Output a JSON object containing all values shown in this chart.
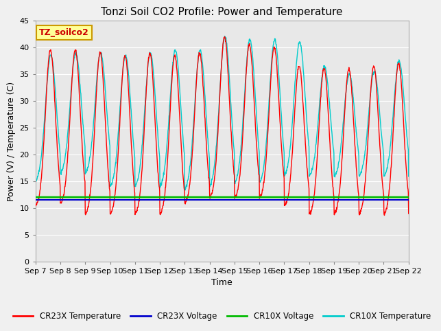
{
  "title": "Tonzi Soil CO2 Profile: Power and Temperature",
  "xlabel": "Time",
  "ylabel": "Power (V) / Temperature (C)",
  "ylim": [
    0,
    45
  ],
  "yticks": [
    0,
    5,
    10,
    15,
    20,
    25,
    30,
    35,
    40,
    45
  ],
  "xtick_labels": [
    "Sep 7",
    "Sep 8",
    "Sep 9",
    "Sep 10",
    "Sep 11",
    "Sep 12",
    "Sep 13",
    "Sep 14",
    "Sep 15",
    "Sep 16",
    "Sep 17",
    "Sep 18",
    "Sep 19",
    "Sep 20",
    "Sep 21",
    "Sep 22"
  ],
  "legend_entries": [
    "CR23X Temperature",
    "CR23X Voltage",
    "CR10X Voltage",
    "CR10X Temperature"
  ],
  "legend_colors": [
    "#ff0000",
    "#0000cd",
    "#00bb00",
    "#00cccc"
  ],
  "cr23x_voltage_val": 11.5,
  "cr10x_voltage_val": 12.0,
  "annotation_text": "TZ_soilco2",
  "annotation_bg": "#ffff99",
  "annotation_border": "#cc9900",
  "fig_bg": "#f0f0f0",
  "plot_bg": "#e8e8e8",
  "grid_color": "#ffffff",
  "title_fontsize": 11,
  "label_fontsize": 9,
  "tick_fontsize": 8
}
